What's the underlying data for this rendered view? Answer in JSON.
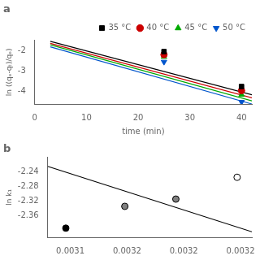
{
  "chart_data": [
    {
      "type": "scatter",
      "title": "a",
      "xlabel": "time (min)",
      "ylabel": "ln ((qₑ-qₜ)/qₑ)",
      "xlim": [
        0,
        42
      ],
      "ylim": [
        -4.6,
        -1.5
      ],
      "xticks": [
        0,
        10,
        20,
        30,
        40
      ],
      "yticks": [
        -4,
        -3,
        -2
      ],
      "grid": false,
      "legend": "upper right",
      "series": [
        {
          "name": "35 °C",
          "color": "black",
          "marker": "s",
          "x": [
            25,
            40
          ],
          "values": [
            -2.05,
            -3.75
          ],
          "line_x": [
            3,
            42
          ],
          "line_y": [
            -1.55,
            -4.15
          ]
        },
        {
          "name": "40 °C",
          "color": "#cc0000",
          "marker": "o",
          "x": [
            25,
            40
          ],
          "values": [
            -2.2,
            -3.95
          ],
          "line_x": [
            3,
            42
          ],
          "line_y": [
            -1.65,
            -4.3
          ]
        },
        {
          "name": "45 °C",
          "color": "#00aa00",
          "marker": "^",
          "x": [
            25,
            40
          ],
          "values": [
            -2.3,
            -4.15
          ],
          "line_x": [
            3,
            42
          ],
          "line_y": [
            -1.72,
            -4.45
          ]
        },
        {
          "name": "50 °C",
          "color": "#0055cc",
          "marker": "v",
          "x": [
            25,
            40
          ],
          "values": [
            -2.55,
            -4.5
          ],
          "line_x": [
            3,
            42
          ],
          "line_y": [
            -1.82,
            -4.6
          ]
        }
      ]
    },
    {
      "type": "scatter",
      "title": "b",
      "ylabel": "ln k₁",
      "xlim": [
        0.00308,
        0.00326
      ],
      "ylim": [
        -2.42,
        -2.2
      ],
      "xticks": [
        0.0031,
        {
          "value": 0.00315,
          "label": "0.0032"
        },
        0.0032,
        {
          "value": 0.00325,
          "label": "0.0032"
        }
      ],
      "yticks": [
        -2.24,
        -2.28,
        -2.32,
        -2.36
      ],
      "grid": false,
      "series": [
        {
          "type": "line",
          "color": "black",
          "x": [
            0.00308,
            0.00326
          ],
          "values": [
            -2.225,
            -2.405
          ]
        },
        {
          "type": "scatter",
          "marker": "o",
          "color": "black",
          "colors": [
            "white",
            "gray",
            "gray",
            "black"
          ],
          "x": [
            0.003247,
            0.003193,
            0.003148,
            0.003096
          ],
          "values": [
            -2.255,
            -2.315,
            -2.335,
            -2.395
          ]
        }
      ]
    }
  ]
}
